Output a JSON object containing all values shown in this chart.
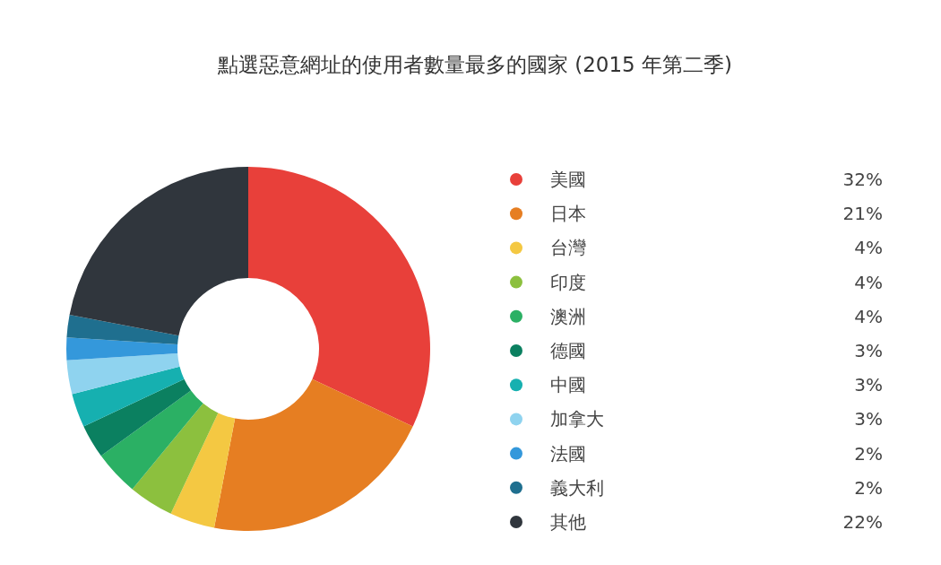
{
  "chart_data": {
    "type": "donut",
    "title": "點選惡意網址的使用者數量最多的國家 (2015 年第二季)",
    "categories": [
      "美國",
      "日本",
      "台灣",
      "印度",
      "澳洲",
      "德國",
      "中國",
      "加拿大",
      "法國",
      "義大利",
      "其他"
    ],
    "values": [
      32,
      21,
      4,
      4,
      4,
      3,
      3,
      3,
      2,
      2,
      22
    ],
    "colors": [
      "#e8403a",
      "#e67e22",
      "#f4c842",
      "#8cc03e",
      "#2bb064",
      "#0b8060",
      "#16b0b0",
      "#8fd3ef",
      "#3498db",
      "#1f6f8f",
      "#30363d"
    ],
    "value_labels": [
      "32%",
      "21%",
      "4%",
      "4%",
      "4%",
      "3%",
      "3%",
      "3%",
      "2%",
      "2%",
      "22%"
    ],
    "legend": "right"
  }
}
